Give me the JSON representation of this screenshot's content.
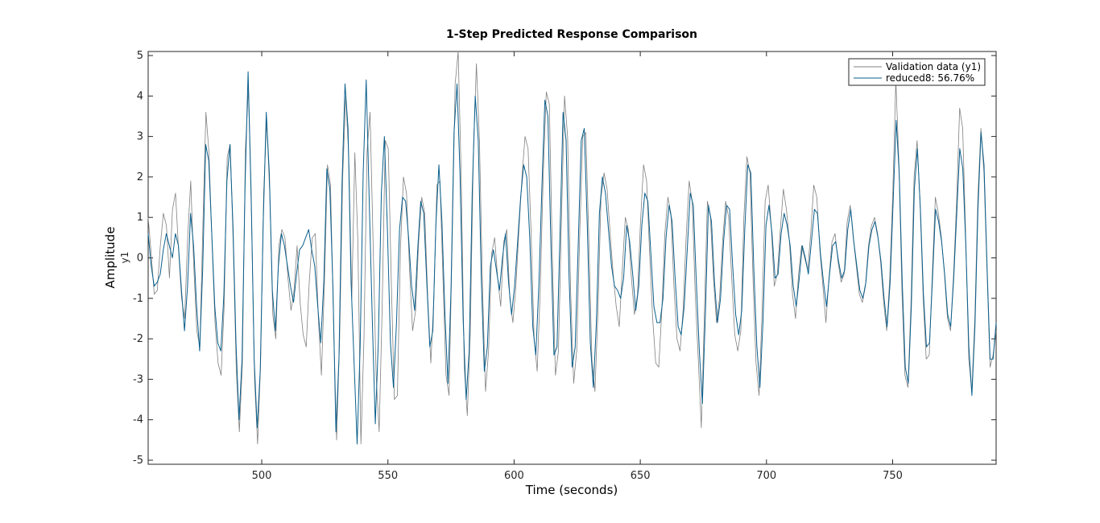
{
  "chart_data": {
    "type": "line",
    "title": "1-Step Predicted Response Comparison",
    "xlabel": "Time (seconds)",
    "ylabel": "Amplitude",
    "channel_label": "y1",
    "xlim": [
      455,
      791
    ],
    "ylim": [
      -5.1,
      5.1
    ],
    "xticks": [
      500,
      550,
      600,
      650,
      700,
      750
    ],
    "yticks": [
      -5,
      -4,
      -3,
      -2,
      -1,
      0,
      1,
      2,
      3,
      4,
      5
    ],
    "x_tick_labels": [
      "500",
      "550",
      "600",
      "650",
      "700",
      "750"
    ],
    "y_tick_labels": [
      "-5",
      "-4",
      "-3",
      "-2",
      "-1",
      "0",
      "1",
      "2",
      "3",
      "4",
      "5"
    ],
    "grid": false,
    "legend_position": "top-right",
    "legend": [
      "Validation data (y1)",
      "reduced8: 56.76%"
    ],
    "colors": {
      "validation": "#808080",
      "reduced8": "#0a5f8c"
    },
    "sample_time": 1,
    "x_start": 455,
    "series": [
      {
        "name": "Validation data (y1)",
        "color": "#808080",
        "values": [
          1.0,
          0.1,
          -0.9,
          -0.8,
          0.3,
          1.1,
          0.8,
          -0.5,
          1.2,
          1.6,
          0.2,
          -1.0,
          -1.5,
          0.5,
          1.9,
          -0.2,
          -1.8,
          -2.2,
          0.8,
          3.6,
          2.6,
          0.4,
          -1.6,
          -2.6,
          -2.9,
          -1.2,
          2.5,
          2.8,
          0.3,
          -2.8,
          -4.3,
          -2.6,
          2.7,
          4.2,
          1.0,
          -3.0,
          -4.6,
          -2.6,
          1.6,
          3.4,
          1.6,
          -1.4,
          -2.0,
          0.3,
          0.7,
          0.5,
          -0.5,
          -1.3,
          -0.8,
          0.3,
          -1.1,
          -1.9,
          -2.2,
          -0.6,
          0.5,
          0.6,
          -1.5,
          -2.9,
          -0.6,
          2.3,
          1.8,
          -1.6,
          -4.5,
          -2.0,
          2.0,
          4.0,
          2.5,
          -1.0,
          2.6,
          0.4,
          -4.6,
          -2.0,
          2.6,
          3.6,
          0.4,
          -2.9,
          -4.3,
          -1.2,
          2.9,
          2.7,
          -0.6,
          -3.5,
          -3.4,
          0.2,
          2.0,
          1.6,
          -0.3,
          -1.8,
          -1.3,
          0.4,
          1.5,
          1.1,
          -1.0,
          -2.6,
          -1.0,
          1.8,
          1.9,
          -0.5,
          -2.9,
          -3.4,
          0.3,
          4.3,
          5.1,
          2.0,
          -2.7,
          -3.9,
          -1.8,
          2.6,
          4.8,
          2.9,
          -0.7,
          -3.3,
          -2.3,
          0.1,
          0.5,
          -0.5,
          -1.2,
          0.4,
          0.7,
          -1.0,
          -1.6,
          -0.7,
          0.7,
          2.0,
          3.0,
          2.7,
          0.6,
          -2.0,
          -2.8,
          -0.8,
          2.1,
          4.1,
          3.8,
          0.0,
          -2.9,
          -2.3,
          1.0,
          4.0,
          3.0,
          -0.8,
          -3.1,
          -2.3,
          0.6,
          3.0,
          3.1,
          0.4,
          -2.5,
          -3.3,
          -1.3,
          1.5,
          2.1,
          1.7,
          0.6,
          -0.4,
          -1.2,
          -1.7,
          -0.3,
          1.0,
          0.7,
          -0.5,
          -1.4,
          -0.9,
          0.9,
          2.3,
          1.9,
          0.1,
          -1.5,
          -2.6,
          -2.7,
          -1.3,
          0.6,
          1.5,
          1.1,
          -0.7,
          -2.0,
          -2.3,
          -1.3,
          0.5,
          1.9,
          1.4,
          -0.9,
          -2.5,
          -4.2,
          -1.4,
          1.4,
          1.0,
          -0.5,
          -1.6,
          -1.0,
          0.4,
          1.4,
          1.0,
          -0.5,
          -1.9,
          -2.3,
          -1.8,
          1.0,
          2.5,
          2.1,
          -0.5,
          -2.6,
          -3.4,
          -1.3,
          1.4,
          1.8,
          0.8,
          -0.7,
          -0.4,
          0.7,
          1.7,
          1.2,
          0.4,
          -0.9,
          -1.5,
          -0.4,
          0.3,
          0.0,
          -0.3,
          0.6,
          1.8,
          1.5,
          0.2,
          -0.7,
          -1.6,
          -0.5,
          0.4,
          0.6,
          -0.1,
          -0.6,
          -0.4,
          0.9,
          1.3,
          0.5,
          -0.2,
          -0.9,
          -1.1,
          -0.7,
          0.3,
          0.8,
          1.0,
          0.6,
          -0.1,
          -1.1,
          -1.8,
          -0.5,
          1.6,
          4.4,
          2.4,
          -0.8,
          -2.9,
          -3.2,
          -1.1,
          2.0,
          2.9,
          1.3,
          -1.0,
          -2.5,
          -2.4,
          -0.4,
          1.5,
          1.1,
          0.5,
          -0.4,
          -1.5,
          -1.8,
          -0.4,
          1.4,
          3.7,
          3.2,
          0.5,
          -2.5,
          -3.3,
          -1.5,
          1.5,
          3.2,
          2.1,
          -0.3,
          -2.7,
          -2.4,
          -1.8
        ]
      },
      {
        "name": "reduced8: 56.76%",
        "color": "#0a5f8c",
        "values": [
          0.6,
          -0.2,
          -0.7,
          -0.6,
          -0.4,
          0.2,
          0.6,
          0.3,
          0.0,
          0.6,
          0.3,
          -0.8,
          -1.8,
          -0.7,
          1.1,
          0.3,
          -1.2,
          -2.3,
          -0.3,
          2.8,
          2.4,
          0.6,
          -1.2,
          -2.1,
          -2.3,
          -0.9,
          1.9,
          2.8,
          0.8,
          -2.1,
          -4.0,
          -2.5,
          1.8,
          4.6,
          1.6,
          -2.5,
          -4.2,
          -2.8,
          0.9,
          3.6,
          2.1,
          -0.8,
          -1.8,
          -0.2,
          0.6,
          0.3,
          -0.2,
          -0.7,
          -1.1,
          -0.4,
          0.2,
          0.3,
          0.5,
          0.7,
          0.2,
          -0.2,
          -1.2,
          -2.1,
          -0.6,
          2.2,
          1.7,
          -0.7,
          -4.3,
          -2.5,
          1.8,
          4.3,
          3.2,
          -0.6,
          -2.6,
          -4.6,
          -2.2,
          2.1,
          4.4,
          1.4,
          -1.5,
          -4.1,
          -2.1,
          1.6,
          3.0,
          0.7,
          -2.1,
          -3.2,
          -1.6,
          0.7,
          1.5,
          1.4,
          0.5,
          -0.7,
          -1.3,
          0.2,
          1.4,
          1.1,
          -0.6,
          -2.2,
          -1.8,
          0.8,
          2.3,
          0.9,
          -1.4,
          -3.1,
          -0.8,
          3.1,
          4.3,
          2.0,
          -1.5,
          -3.5,
          -2.3,
          1.6,
          4.0,
          2.9,
          -0.5,
          -2.8,
          -2.2,
          -0.2,
          0.2,
          -0.3,
          -0.8,
          0.0,
          0.6,
          -0.6,
          -1.4,
          -0.7,
          0.4,
          1.5,
          2.3,
          2.0,
          0.5,
          -1.7,
          -2.4,
          -0.7,
          1.7,
          3.9,
          3.5,
          0.3,
          -2.4,
          -2.2,
          0.6,
          3.6,
          2.9,
          -0.5,
          -2.7,
          -2.2,
          0.3,
          2.9,
          3.2,
          0.8,
          -2.1,
          -3.2,
          -1.6,
          1.1,
          2.0,
          1.6,
          0.7,
          -0.2,
          -0.7,
          -0.8,
          -1.0,
          -0.5,
          0.8,
          0.4,
          -0.4,
          -1.3,
          -0.7,
          0.8,
          1.6,
          1.4,
          0.1,
          -1.2,
          -1.6,
          -1.6,
          -1.0,
          0.5,
          1.3,
          0.9,
          -0.5,
          -1.7,
          -1.9,
          -1.2,
          0.2,
          1.6,
          1.3,
          -0.6,
          -2.3,
          -3.6,
          -1.4,
          1.3,
          0.9,
          -0.6,
          -1.6,
          -1.0,
          0.4,
          1.3,
          1.2,
          -0.2,
          -1.4,
          -1.9,
          -1.3,
          0.7,
          2.3,
          2.1,
          -0.3,
          -2.2,
          -3.2,
          -1.6,
          0.8,
          1.3,
          0.6,
          -0.5,
          -0.4,
          0.6,
          1.1,
          0.8,
          0.3,
          -0.7,
          -1.2,
          -0.5,
          0.3,
          0.0,
          -0.4,
          0.4,
          1.2,
          1.1,
          0.1,
          -0.6,
          -1.2,
          -0.4,
          0.3,
          0.4,
          -0.1,
          -0.5,
          -0.3,
          0.7,
          1.2,
          0.4,
          -0.2,
          -0.8,
          -1.0,
          -0.6,
          0.3,
          0.7,
          0.9,
          0.5,
          -0.1,
          -1.0,
          -1.7,
          -0.6,
          1.4,
          3.4,
          2.1,
          -0.6,
          -2.7,
          -3.1,
          -1.2,
          1.7,
          2.7,
          1.2,
          -0.9,
          -2.2,
          -2.1,
          -0.5,
          1.2,
          0.9,
          0.4,
          -0.4,
          -1.4,
          -1.7,
          -0.5,
          1.1,
          2.7,
          2.2,
          0.3,
          -2.2,
          -3.4,
          -1.7,
          1.2,
          3.1,
          2.3,
          -0.2,
          -2.5,
          -2.5,
          -1.6
        ]
      }
    ]
  }
}
